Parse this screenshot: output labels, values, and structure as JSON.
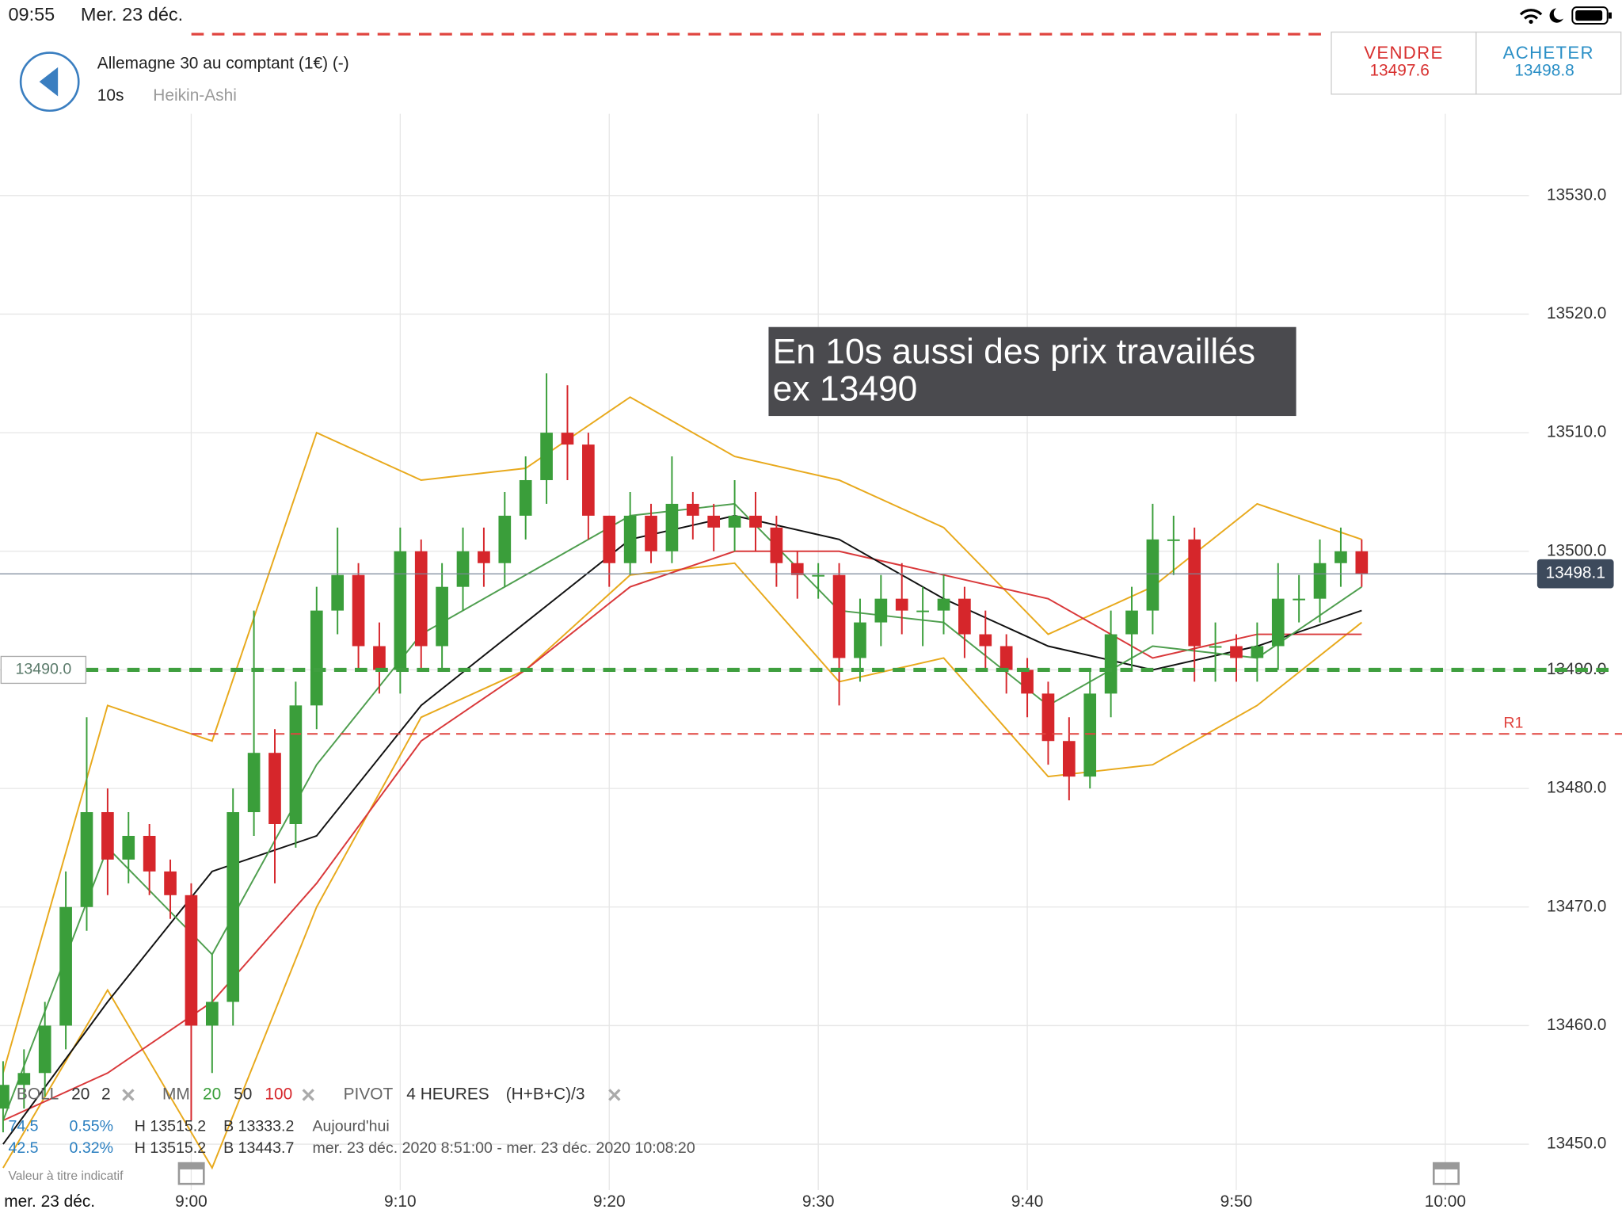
{
  "status_bar": {
    "time": "09:55",
    "date": "Mer. 23 déc."
  },
  "header": {
    "instrument": "Allemagne 30 au comptant (1€) (-)",
    "interval": "10s",
    "chart_style": "Heikin-Ashi"
  },
  "quote": {
    "sell_label": "VENDRE",
    "sell_price": "13497.6",
    "buy_label": "ACHETER",
    "buy_price": "13498.8"
  },
  "annotation": [
    "En 10s aussi des prix travaillés",
    "ex 13490"
  ],
  "chart_data": {
    "type": "candlestick",
    "up_color": "#3a9e3a",
    "down_color": "#d6262b",
    "x": [
      "8:51",
      "8:52",
      "8:53",
      "8:54",
      "8:55",
      "8:56",
      "8:57",
      "8:58",
      "8:59",
      "9:00",
      "9:01",
      "9:02",
      "9:03",
      "9:04",
      "9:05",
      "9:06",
      "9:07",
      "9:08",
      "9:09",
      "9:10",
      "9:11",
      "9:12",
      "9:13",
      "9:14",
      "9:15",
      "9:16",
      "9:17",
      "9:18",
      "9:19",
      "9:20",
      "9:21",
      "9:22",
      "9:23",
      "9:24",
      "9:25",
      "9:26",
      "9:27",
      "9:28",
      "9:29",
      "9:30",
      "9:31",
      "9:32",
      "9:33",
      "9:34",
      "9:35",
      "9:36",
      "9:37",
      "9:38",
      "9:39",
      "9:40",
      "9:41",
      "9:42",
      "9:43",
      "9:44",
      "9:45",
      "9:46",
      "9:47",
      "9:48",
      "9:49",
      "9:50",
      "9:51",
      "9:52",
      "9:53",
      "9:54",
      "9:55",
      "9:56"
    ],
    "open": [
      13453,
      13455,
      13456,
      13460,
      13470,
      13478,
      13474,
      13476,
      13473,
      13471,
      13460,
      13462,
      13478,
      13483,
      13477,
      13487,
      13495,
      13498,
      13492,
      13490,
      13500,
      13492,
      13497,
      13500,
      13499,
      13503,
      13506,
      13510,
      13509,
      13503,
      13499,
      13503,
      13500,
      13504,
      13503,
      13502,
      13503,
      13502,
      13499,
      13498,
      13498,
      13491,
      13494,
      13496,
      13495,
      13495,
      13496,
      13493,
      13492,
      13490,
      13488,
      13484,
      13481,
      13488,
      13493,
      13495,
      13501,
      13501,
      13492,
      13492,
      13491,
      13492,
      13496,
      13496,
      13499,
      13500
    ],
    "high": [
      13457,
      13458,
      13462,
      13473,
      13486,
      13480,
      13478,
      13477,
      13474,
      13472,
      13466,
      13480,
      13495,
      13485,
      13489,
      13497,
      13502,
      13499,
      13494,
      13502,
      13501,
      13499,
      13502,
      13502,
      13505,
      13508,
      13515,
      13514,
      13510,
      13503,
      13505,
      13504,
      13508,
      13505,
      13504,
      13506,
      13505,
      13503,
      13500,
      13499,
      13499,
      13496,
      13498,
      13499,
      13497,
      13498,
      13497,
      13495,
      13493,
      13491,
      13489,
      13486,
      13490,
      13495,
      13497,
      13504,
      13503,
      13502,
      13494,
      13493,
      13494,
      13499,
      13498,
      13501,
      13502,
      13501
    ],
    "low": [
      13451,
      13453,
      13454,
      13458,
      13468,
      13471,
      13472,
      13471,
      13469,
      13452,
      13456,
      13460,
      13476,
      13472,
      13475,
      13485,
      13493,
      13490,
      13488,
      13488,
      13490,
      13490,
      13495,
      13497,
      13497,
      13501,
      13504,
      13506,
      13501,
      13497,
      13498,
      13499,
      13499,
      13501,
      13500,
      13500,
      13500,
      13497,
      13496,
      13496,
      13487,
      13489,
      13492,
      13493,
      13492,
      13493,
      13491,
      13490,
      13488,
      13486,
      13482,
      13479,
      13480,
      13486,
      13490,
      13493,
      13498,
      13489,
      13489,
      13489,
      13489,
      13490,
      13494,
      13494,
      13497,
      13497
    ],
    "close": [
      13455,
      13456,
      13460,
      13470,
      13478,
      13474,
      13476,
      13473,
      13471,
      13460,
      13462,
      13478,
      13483,
      13477,
      13487,
      13495,
      13498,
      13492,
      13490,
      13500,
      13492,
      13497,
      13500,
      13499,
      13503,
      13506,
      13510,
      13509,
      13503,
      13499,
      13503,
      13500,
      13504,
      13503,
      13502,
      13503,
      13502,
      13499,
      13498,
      13498,
      13491,
      13494,
      13496,
      13495,
      13495,
      13496,
      13493,
      13492,
      13490,
      13488,
      13484,
      13481,
      13488,
      13493,
      13495,
      13501,
      13501,
      13492,
      13492,
      13491,
      13492,
      13496,
      13496,
      13499,
      13500,
      13498.1
    ],
    "overlays": [
      {
        "color": "#e8a91c",
        "x": [
          "8:51",
          "8:56",
          "9:01",
          "9:06",
          "9:11",
          "9:16",
          "9:21",
          "9:26",
          "9:31",
          "9:36",
          "9:41",
          "9:46",
          "9:51",
          "9:56"
        ],
        "values": [
          13456,
          13487,
          13484,
          13510,
          13506,
          13507,
          13513,
          13508,
          13506,
          13502,
          13493,
          13497,
          13504,
          13501
        ]
      },
      {
        "color": "#e8a91c",
        "x": [
          "8:51",
          "8:56",
          "9:01",
          "9:06",
          "9:11",
          "9:16",
          "9:21",
          "9:26",
          "9:31",
          "9:36",
          "9:41",
          "9:46",
          "9:51",
          "9:56"
        ],
        "values": [
          13448,
          13463,
          13448,
          13470,
          13486,
          13490,
          13498,
          13499,
          13489,
          13491,
          13481,
          13482,
          13487,
          13494
        ]
      },
      {
        "color": "#d9383a",
        "x": [
          "8:51",
          "8:56",
          "9:01",
          "9:06",
          "9:11",
          "9:16",
          "9:21",
          "9:26",
          "9:31",
          "9:36",
          "9:41",
          "9:46",
          "9:51",
          "9:56"
        ],
        "values": [
          13452,
          13456,
          13462,
          13472,
          13484,
          13490,
          13497,
          13500,
          13500,
          13498,
          13496,
          13491,
          13493,
          13493
        ]
      },
      {
        "color": "#111111",
        "x": [
          "8:51",
          "8:56",
          "9:01",
          "9:06",
          "9:11",
          "9:16",
          "9:21",
          "9:26",
          "9:31",
          "9:36",
          "9:41",
          "9:46",
          "9:51",
          "9:56"
        ],
        "values": [
          13450,
          13462,
          13473,
          13476,
          13487,
          13494,
          13501,
          13503,
          13501,
          13496,
          13492,
          13490,
          13492,
          13495
        ]
      },
      {
        "color": "#4e9e4e",
        "x": [
          "8:51",
          "8:56",
          "9:01",
          "9:06",
          "9:11",
          "9:16",
          "9:21",
          "9:26",
          "9:31",
          "9:36",
          "9:41",
          "9:46",
          "9:51",
          "9:56"
        ],
        "values": [
          13452,
          13475,
          13466,
          13482,
          13493,
          13498,
          13503,
          13504,
          13495,
          13494,
          13487,
          13492,
          13491,
          13497
        ]
      }
    ],
    "levels": [
      {
        "value": 13490,
        "label": "13490.0",
        "color": "#3f9f3f"
      },
      {
        "value": 13484.6,
        "label": "R1",
        "color": "#e0443f"
      }
    ],
    "last_price": {
      "value": 13498.1,
      "label": "13498.1"
    },
    "xlim": [
      "8:51",
      "10:04"
    ],
    "ylim": [
      13447,
      13543
    ],
    "xticks": [
      "9:00",
      "9:10",
      "9:20",
      "9:30",
      "9:40",
      "9:50",
      "10:00"
    ],
    "yticks": [
      {
        "value": 13450,
        "label": "13450.0"
      },
      {
        "value": 13460,
        "label": "13460.0"
      },
      {
        "value": 13470,
        "label": "13470.0"
      },
      {
        "value": 13480,
        "label": "13480.0"
      },
      {
        "value": 13490,
        "label": "13490.0"
      },
      {
        "value": 13500,
        "label": "13500.0"
      },
      {
        "value": 13510,
        "label": "13510.0"
      },
      {
        "value": 13520,
        "label": "13520.0"
      },
      {
        "value": 13530,
        "label": "13530.0"
      }
    ],
    "grid": true
  },
  "indicators": {
    "boll": [
      "BOLL",
      "20",
      "2"
    ],
    "mm": [
      "MM",
      "20",
      "50",
      "100"
    ],
    "pivot": [
      "PIVOT",
      "4 HEURES",
      "(H+B+C)/3"
    ],
    "rows": [
      [
        "74.5",
        "0.55%",
        "H 13515.2",
        "B 13333.2",
        "Aujourd'hui"
      ],
      [
        "42.5",
        "0.32%",
        "H 13515.2",
        "B 13443.7",
        "mer. 23 déc. 2020 8:51:00 - mer. 23 déc. 2020 10:08:20"
      ]
    ]
  },
  "footer": {
    "note": "Valeur à titre indicatif",
    "date": "mer. 23 déc."
  }
}
